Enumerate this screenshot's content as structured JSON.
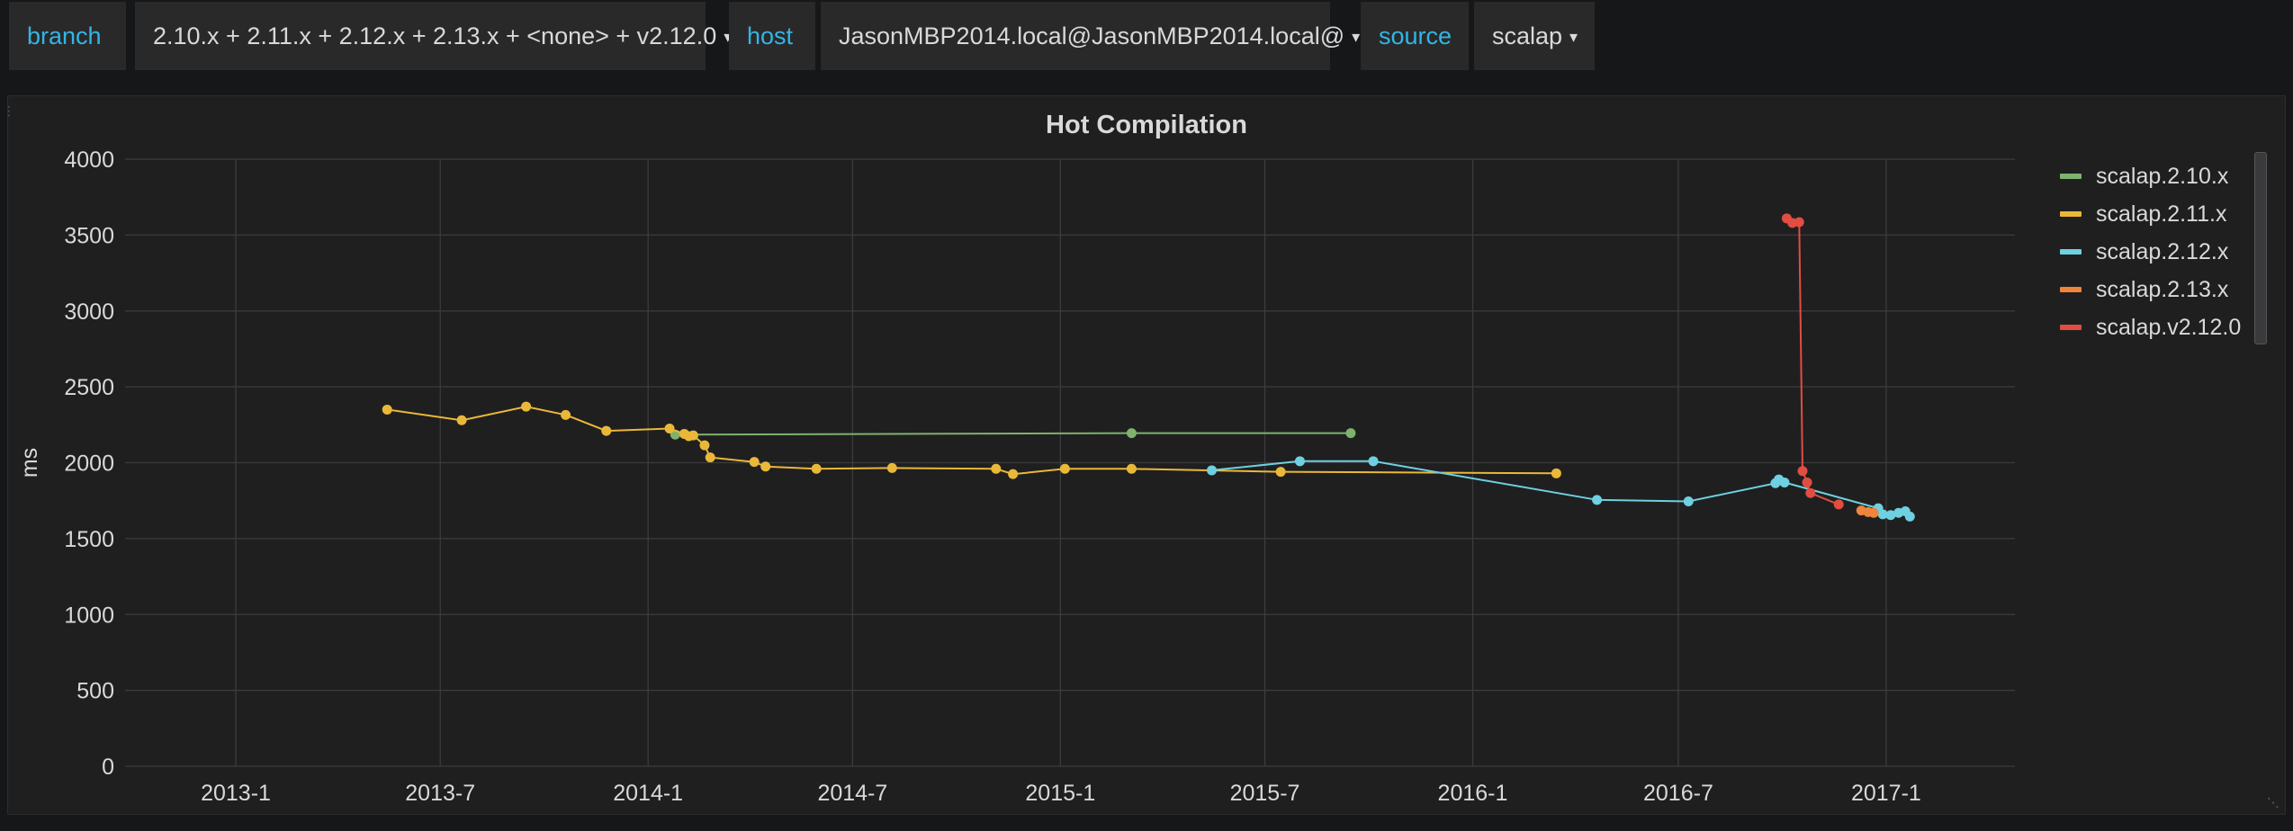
{
  "variables": [
    {
      "label": "branch",
      "value": "2.10.x + 2.11.x + 2.12.x + 2.13.x + <none> + v2.12.0"
    },
    {
      "label": "host",
      "value": "JasonMBP2014.local@JasonMBP2014.local@"
    },
    {
      "label": "source",
      "value": "scalap"
    }
  ],
  "panel": {
    "title": "Hot Compilation"
  },
  "colors": {
    "background": "#161719",
    "panel": "#1f1f20",
    "grid": "#3c3c3e",
    "label": "#33b5e5"
  },
  "chart_data": {
    "type": "line",
    "title": "Hot Compilation",
    "xlabel": "",
    "ylabel": "ms",
    "xlim": [
      "2012-09-25",
      "2017-04-25"
    ],
    "ylim": [
      0,
      4000
    ],
    "x_ticks": [
      "2013-1",
      "2013-7",
      "2014-1",
      "2014-7",
      "2015-1",
      "2015-7",
      "2016-1",
      "2016-7",
      "2017-1"
    ],
    "y_ticks": [
      0,
      500,
      1000,
      1500,
      2000,
      2500,
      3000,
      3500,
      4000
    ],
    "grid": true,
    "legend_position": "right",
    "series": [
      {
        "name": "scalap.2.10.x",
        "color": "#7eb26d",
        "points": [
          [
            "2014-01-25",
            2185
          ],
          [
            "2015-03-05",
            2195
          ],
          [
            "2015-09-15",
            2195
          ]
        ]
      },
      {
        "name": "scalap.2.11.x",
        "color": "#eab839",
        "points": [
          [
            "2013-05-15",
            2350
          ],
          [
            "2013-07-20",
            2280
          ],
          [
            "2013-09-15",
            2370
          ],
          [
            "2013-10-20",
            2315
          ],
          [
            "2013-11-25",
            2210
          ],
          [
            "2014-01-20",
            2225
          ],
          [
            "2014-02-02",
            2190
          ],
          [
            "2014-02-06",
            2175
          ],
          [
            "2014-02-10",
            2180
          ],
          [
            "2014-02-20",
            2115
          ],
          [
            "2014-02-25",
            2035
          ],
          [
            "2014-04-05",
            2005
          ],
          [
            "2014-04-15",
            1975
          ],
          [
            "2014-05-30",
            1960
          ],
          [
            "2014-08-05",
            1965
          ],
          [
            "2014-11-05",
            1960
          ],
          [
            "2014-11-20",
            1925
          ],
          [
            "2015-01-05",
            1960
          ],
          [
            "2015-03-05",
            1960
          ],
          [
            "2015-07-15",
            1940
          ],
          [
            "2016-03-15",
            1930
          ]
        ]
      },
      {
        "name": "scalap.2.12.x",
        "color": "#6ed0e0",
        "points": [
          [
            "2015-05-15",
            1950
          ],
          [
            "2015-08-01",
            2010
          ],
          [
            "2015-10-05",
            2010
          ],
          [
            "2016-04-20",
            1755
          ],
          [
            "2016-07-10",
            1745
          ],
          [
            "2016-09-25",
            1865
          ],
          [
            "2016-09-28",
            1890
          ],
          [
            "2016-10-03",
            1870
          ],
          [
            "2016-12-25",
            1700
          ],
          [
            "2016-12-29",
            1660
          ],
          [
            "2017-01-05",
            1655
          ],
          [
            "2017-01-12",
            1670
          ],
          [
            "2017-01-18",
            1680
          ],
          [
            "2017-01-22",
            1645
          ]
        ]
      },
      {
        "name": "scalap.2.13.x",
        "color": "#ef843c",
        "points": [
          [
            "2016-12-10",
            1685
          ],
          [
            "2016-12-16",
            1675
          ],
          [
            "2016-12-21",
            1670
          ]
        ]
      },
      {
        "name": "scalap.v2.12.0",
        "color": "#e24d42",
        "points": [
          [
            "2016-10-05",
            3610
          ],
          [
            "2016-10-10",
            3580
          ],
          [
            "2016-10-16",
            3585
          ],
          [
            "2016-10-19",
            1945
          ],
          [
            "2016-10-23",
            1870
          ],
          [
            "2016-10-26",
            1800
          ],
          [
            "2016-11-20",
            1725
          ]
        ]
      }
    ]
  }
}
